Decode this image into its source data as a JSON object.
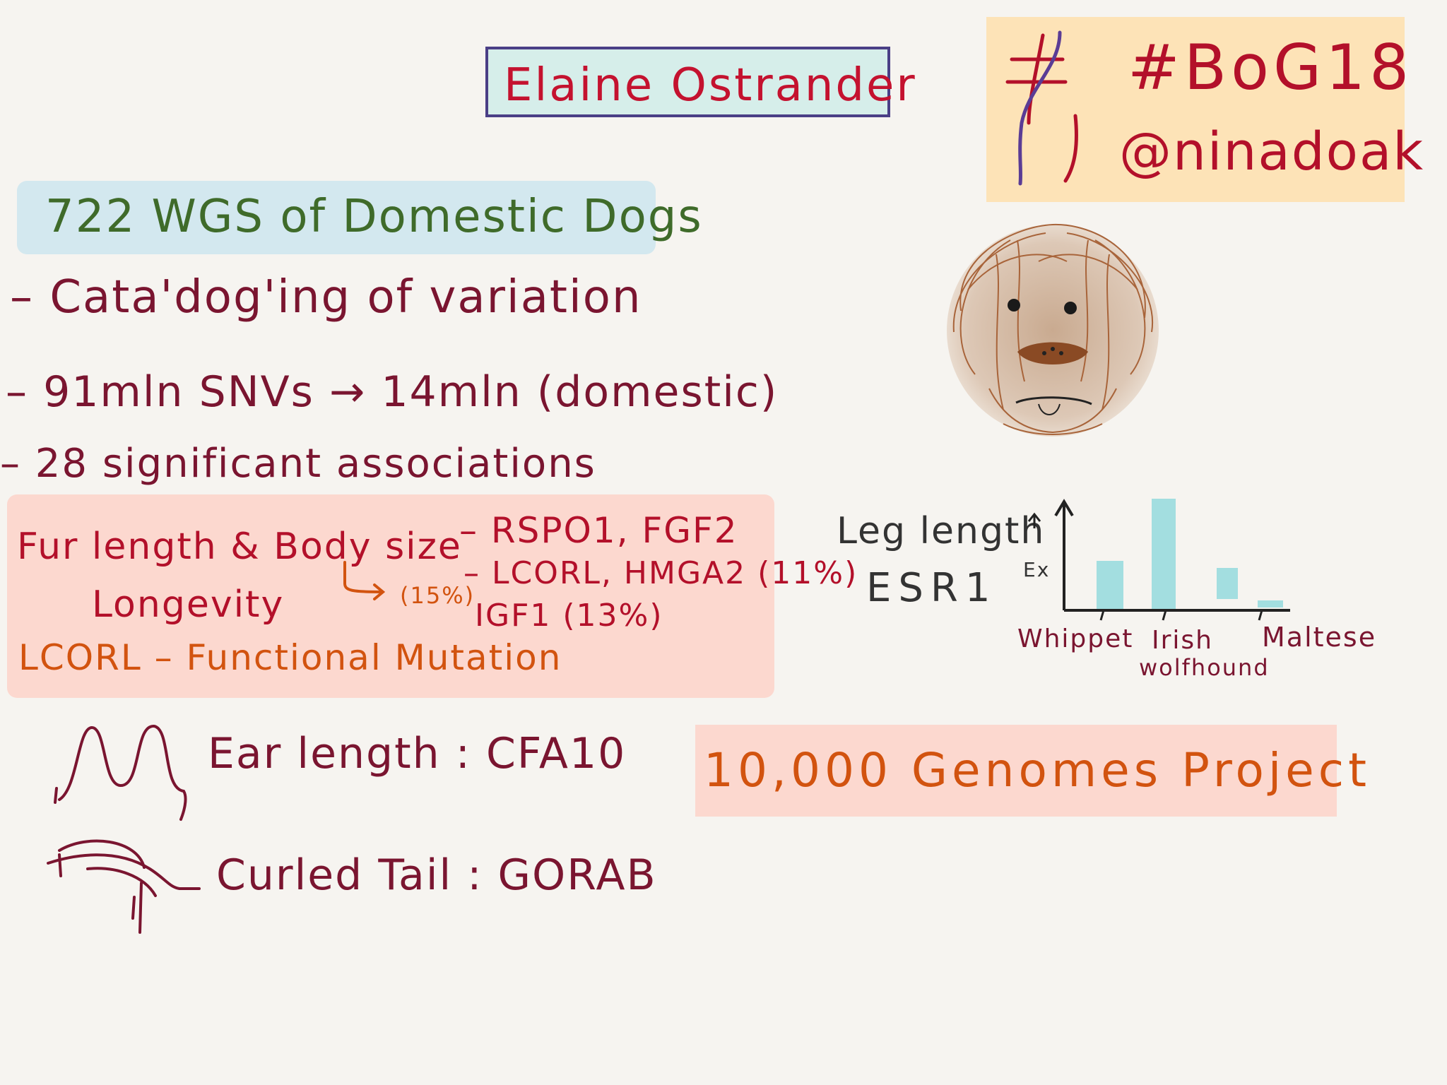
{
  "title": "Elaine Ostrander",
  "hashtag": "#BoG18",
  "handle": "@ninadoak",
  "headline": "722 WGS of Domestic Dogs",
  "bullets": [
    "– Cata'dog'ing of variation",
    "– 91mln SNVs → 14mln (domestic)",
    "– 28 significant associations"
  ],
  "traits": {
    "fur_body": "Fur length & Body size",
    "genes_1": "– RSPO1, FGF2",
    "genes_2": "– LCORL, HMGA2 (11%)",
    "genes_3": "IGF1 (13%)",
    "longevity": "Longevity",
    "longevity_pct": "(15%)",
    "lcorl": "LCORL – Functional Mutation"
  },
  "ear": "Ear length : CFA10",
  "tail": "Curled Tail : GORAB",
  "genomes": "10,000 Genomes Project",
  "leg": {
    "line1": "Leg length",
    "line2": "ESR1",
    "axis_label": "Ex",
    "categories": [
      "Whippet",
      "Irish",
      "Maltese"
    ],
    "category_sub": "wolfhound"
  },
  "colors": {
    "title_box": "#d6eeea",
    "hashtag_box": "#fde3b7",
    "wgs_box": "#d3e8ef",
    "pink_box": "#fcd8cf",
    "bars": "#a3dee0"
  }
}
